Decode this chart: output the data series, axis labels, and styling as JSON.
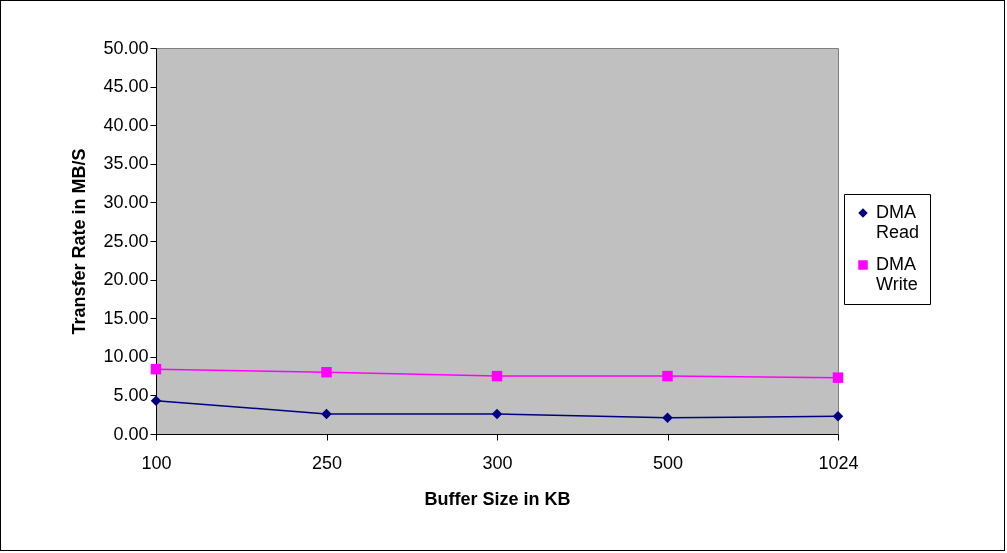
{
  "chart_data": {
    "type": "line",
    "xlabel": "Buffer Size in KB",
    "ylabel": "Transfer Rate in MB/S",
    "categories": [
      "100",
      "250",
      "300",
      "500",
      "1024"
    ],
    "series": [
      {
        "name": "DMA Read",
        "color": "#000080",
        "marker": "diamond",
        "values": [
          4.3,
          2.6,
          2.6,
          2.1,
          2.3
        ]
      },
      {
        "name": "DMA Write",
        "color": "#ff00ff",
        "marker": "square",
        "values": [
          8.4,
          8.0,
          7.5,
          7.5,
          7.3
        ]
      }
    ],
    "ylim": [
      0,
      50
    ],
    "yticks": [
      {
        "value": 0,
        "label": "0.00"
      },
      {
        "value": 5,
        "label": "5.00"
      },
      {
        "value": 10,
        "label": "10.00"
      },
      {
        "value": 15,
        "label": "15.00"
      },
      {
        "value": 20,
        "label": "20.00"
      },
      {
        "value": 25,
        "label": "25.00"
      },
      {
        "value": 30,
        "label": "30.00"
      },
      {
        "value": 35,
        "label": "35.00"
      },
      {
        "value": 40,
        "label": "40.00"
      },
      {
        "value": 45,
        "label": "45.00"
      },
      {
        "value": 50,
        "label": "50.00"
      }
    ],
    "grid": false,
    "legend": "right"
  }
}
